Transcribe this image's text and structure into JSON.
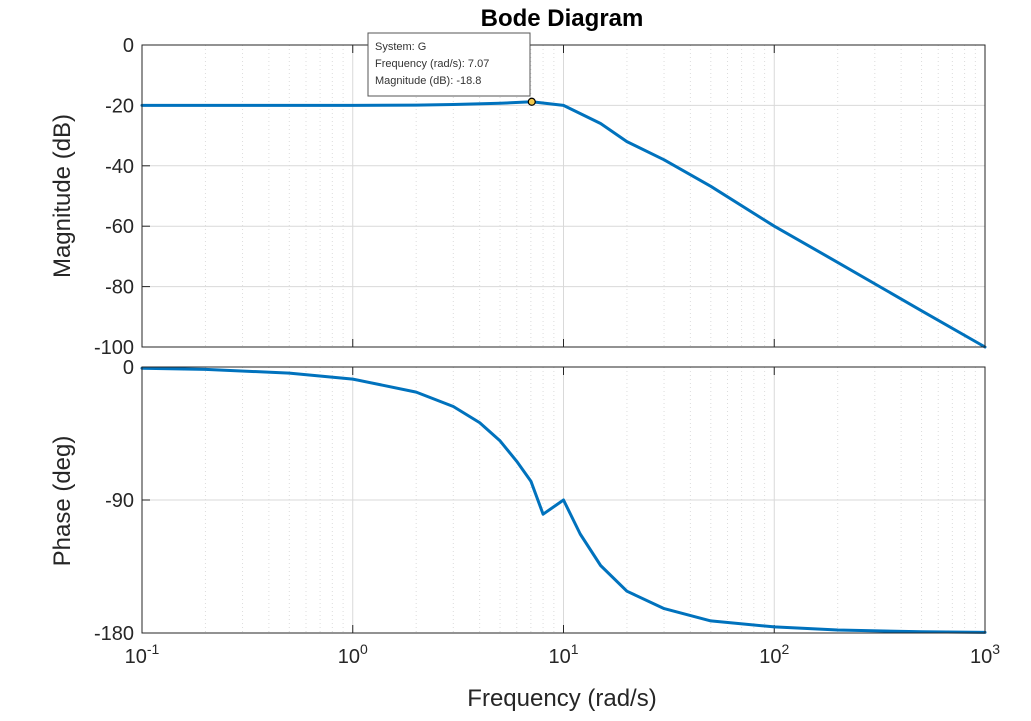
{
  "chart_data": {
    "type": "line",
    "title": "Bode Diagram",
    "xlabel": "Frequency  (rad/s)",
    "xscale": "log",
    "xlim": [
      0.1,
      1000
    ],
    "x_tick_labels": [
      {
        "base": "10",
        "exp": "-1"
      },
      {
        "base": "10",
        "exp": "0"
      },
      {
        "base": "10",
        "exp": "1"
      },
      {
        "base": "10",
        "exp": "2"
      },
      {
        "base": "10",
        "exp": "3"
      }
    ],
    "grid": true,
    "line_color": "#0072BD",
    "magnitude": {
      "ylabel": "Magnitude (dB)",
      "ylim": [
        -100,
        0
      ],
      "yticks": [
        "0",
        "-20",
        "-40",
        "-60",
        "-80",
        "-100"
      ],
      "points": [
        [
          0.1,
          -20.0
        ],
        [
          0.2,
          -20.0
        ],
        [
          0.5,
          -20.0
        ],
        [
          1,
          -20.0
        ],
        [
          2,
          -19.9
        ],
        [
          3,
          -19.7
        ],
        [
          5,
          -19.3
        ],
        [
          7.07,
          -18.8
        ],
        [
          10,
          -20.0
        ],
        [
          15,
          -26.0
        ],
        [
          20,
          -32.0
        ],
        [
          30,
          -38.0
        ],
        [
          50,
          -46.8
        ],
        [
          100,
          -60.0
        ],
        [
          200,
          -72.0
        ],
        [
          500,
          -88.0
        ],
        [
          1000,
          -100.0
        ]
      ]
    },
    "phase": {
      "ylabel": "Phase (deg)",
      "ylim": [
        -180,
        0
      ],
      "yticks": [
        "0",
        "-90",
        "-180"
      ],
      "points": [
        [
          0.1,
          -0.8
        ],
        [
          0.2,
          -1.6
        ],
        [
          0.5,
          -4.1
        ],
        [
          1,
          -8.2
        ],
        [
          2,
          -17.0
        ],
        [
          3,
          -26.7
        ],
        [
          4,
          -37.6
        ],
        [
          5,
          -50.0
        ],
        [
          6,
          -63.8
        ],
        [
          7,
          -77.3
        ],
        [
          8,
          -99.6
        ],
        [
          10,
          -90.0
        ],
        [
          12,
          -113.0
        ],
        [
          15,
          -134.3
        ],
        [
          20,
          -151.7
        ],
        [
          30,
          -163.5
        ],
        [
          50,
          -171.8
        ],
        [
          100,
          -175.9
        ],
        [
          200,
          -178.0
        ],
        [
          500,
          -179.2
        ],
        [
          1000,
          -179.6
        ]
      ]
    },
    "datatip": {
      "system": "System: G",
      "frequency": "Frequency (rad/s): 7.07",
      "magnitude": "Magnitude (dB): -18.8",
      "x": 7.07,
      "y": -18.8
    }
  }
}
